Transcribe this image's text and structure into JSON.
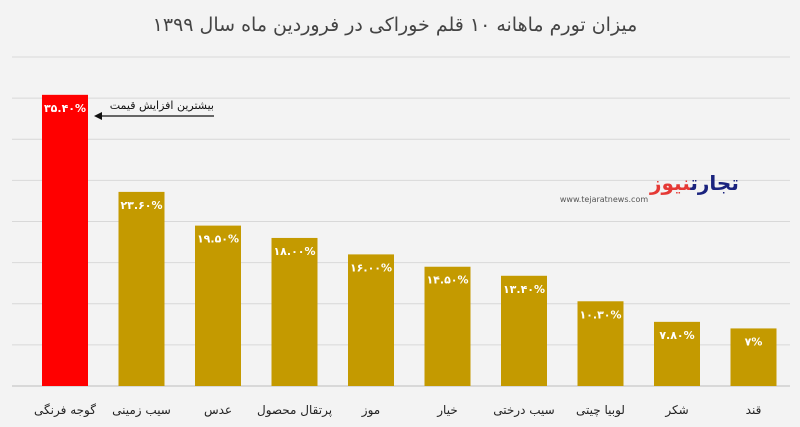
{
  "chart_data": {
    "type": "bar",
    "title": "میزان تورم ماهانه ۱۰ قلم خوراکی در فروردین ماه سال ۱۳۹۹",
    "categories": [
      "گوجه فرنگی",
      "سیب زمینی",
      "عدس",
      "پرتقال محصول",
      "موز",
      "خیار",
      "سیب درختی",
      "لوبیا چیتی",
      "شکر",
      "قند"
    ],
    "values": [
      35.4,
      23.6,
      19.5,
      18.0,
      16.0,
      14.5,
      13.4,
      10.3,
      7.8,
      7.0
    ],
    "value_labels": [
      "۳۵.۴۰%",
      "۲۳.۶۰%",
      "۱۹.۵۰%",
      "۱۸.۰۰%",
      "۱۶.۰۰%",
      "۱۴.۵۰%",
      "۱۳.۴۰%",
      "۱۰.۳۰%",
      "۷.۸۰%",
      "۷%"
    ],
    "ylim": [
      0,
      40
    ],
    "grid": true,
    "colors": {
      "default": "#c49a00",
      "highlight": "#ff0000",
      "grid": "#d8d8d8",
      "background": "#f3f3f3"
    },
    "highlight_index": 0,
    "annotation": {
      "text": "بیشترین افزایش قیمت",
      "target_index": 0
    }
  },
  "logo": {
    "text_main": "تجارت",
    "text_accent": "نیوز",
    "url": "www.tejaratnews.com",
    "main_color": "#1a237e",
    "accent_color": "#e53935"
  }
}
